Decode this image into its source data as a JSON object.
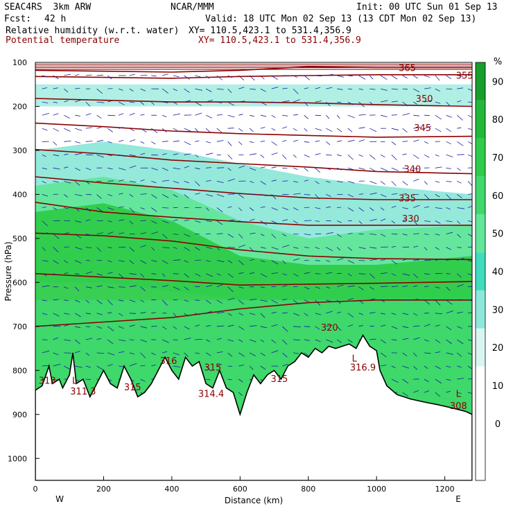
{
  "header": {
    "model": "SEAC4RS  3km ARW",
    "org": "NCAR/MMM",
    "init": "Init: 00 UTC Sun 01 Sep 13",
    "fcst_label": "Fcst:",
    "fcst_value": "42 h",
    "valid": "Valid: 18 UTC Mon 02 Sep 13 (13 CDT Mon 02 Sep 13)",
    "field1": "Relative humidity (w.r.t. water)",
    "xy1": "XY= 110.5,423.1 to 531.4,356.9",
    "field2": "Potential temperature",
    "xy2": "XY= 110.5,423.1 to 531.4,356.9"
  },
  "colors": {
    "contour": "#8b0000",
    "vector": "#1a1aa0",
    "ground": "#ffffff",
    "rh_levels": [
      "#ffffff",
      "#ffffff",
      "#ffffff",
      "#d8f6ef",
      "#8ee8d9",
      "#3fdcc0",
      "#62e69a",
      "#3ed86b",
      "#2ecc4a",
      "#22b83a",
      "#189e2c"
    ]
  },
  "chart_data": {
    "type": "heatmap",
    "title": "Relative humidity (w.r.t. water)",
    "xlabel": "Distance (km)",
    "ylabel": "Pressure (hPa)",
    "xlim": [
      0,
      1280
    ],
    "ylim": [
      1050,
      100
    ],
    "x_ticks": [
      0,
      200,
      400,
      600,
      800,
      1000,
      1200
    ],
    "y_ticks": [
      100,
      200,
      300,
      400,
      500,
      600,
      700,
      800,
      900,
      1000
    ],
    "x_end_labels": {
      "left": "W",
      "right": "E"
    },
    "colorbar": {
      "unit": "%",
      "levels": [
        0,
        10,
        20,
        30,
        40,
        50,
        60,
        70,
        80,
        90
      ]
    },
    "theta_contours": [
      {
        "label": "365",
        "levels_x": [
          0,
          200,
          400,
          600,
          800,
          1000,
          1280
        ],
        "p": [
          118,
          120,
          122,
          118,
          110,
          112,
          112
        ]
      },
      {
        "label": "355",
        "levels_x": [
          0,
          200,
          400,
          600,
          800,
          1000,
          1280
        ],
        "p": [
          132,
          134,
          136,
          132,
          130,
          128,
          128
        ]
      },
      {
        "label": "350",
        "levels_x": [
          0,
          200,
          400,
          600,
          800,
          1000,
          1280
        ],
        "p": [
          182,
          186,
          190,
          190,
          192,
          196,
          200
        ]
      },
      {
        "label": "345",
        "levels_x": [
          0,
          200,
          400,
          600,
          800,
          1000,
          1280
        ],
        "p": [
          238,
          246,
          256,
          262,
          266,
          270,
          268
        ]
      },
      {
        "label": "340",
        "levels_x": [
          0,
          200,
          400,
          600,
          800,
          1000,
          1280
        ],
        "p": [
          298,
          308,
          322,
          330,
          338,
          348,
          353
        ]
      },
      {
        "label": "335",
        "levels_x": [
          0,
          200,
          400,
          600,
          800,
          1000,
          1280
        ],
        "p": [
          360,
          374,
          386,
          398,
          408,
          412,
          412
        ]
      },
      {
        "label": "330",
        "levels_x": [
          0,
          200,
          400,
          600,
          800,
          1000,
          1280
        ],
        "p": [
          418,
          440,
          452,
          462,
          470,
          470,
          470
        ]
      },
      {
        "label": "",
        "levels_x": [
          0,
          200,
          400,
          600,
          800,
          1000,
          1280
        ],
        "p": [
          488,
          494,
          506,
          526,
          540,
          546,
          548
        ]
      },
      {
        "label": "",
        "levels_x": [
          0,
          200,
          400,
          600,
          800,
          1000,
          1280
        ],
        "p": [
          580,
          588,
          596,
          606,
          604,
          602,
          598
        ]
      },
      {
        "label": "",
        "levels_x": [
          0,
          200,
          400,
          600,
          800,
          1000,
          1280
        ],
        "p": [
          700,
          690,
          680,
          660,
          646,
          640,
          640
        ]
      }
    ],
    "contour_labels": [
      {
        "text": "365",
        "x": 1090,
        "p": 120
      },
      {
        "text": "355",
        "x": 1258,
        "p": 137
      },
      {
        "text": "350",
        "x": 1140,
        "p": 190
      },
      {
        "text": "345",
        "x": 1135,
        "p": 256
      },
      {
        "text": "340",
        "x": 1105,
        "p": 350
      },
      {
        "text": "335",
        "x": 1090,
        "p": 416
      },
      {
        "text": "330",
        "x": 1100,
        "p": 462
      },
      {
        "text": "320",
        "x": 862,
        "p": 710
      },
      {
        "text": "316.9",
        "x": 960,
        "p": 800
      },
      {
        "text": "315",
        "x": 520,
        "p": 800
      },
      {
        "text": "316",
        "x": 390,
        "p": 785
      },
      {
        "text": "314.4",
        "x": 515,
        "p": 860
      },
      {
        "text": "315",
        "x": 715,
        "p": 826
      },
      {
        "text": "315",
        "x": 285,
        "p": 845
      },
      {
        "text": "311.3",
        "x": 140,
        "p": 855
      },
      {
        "text": "313",
        "x": 35,
        "p": 830
      },
      {
        "text": "308",
        "x": 1240,
        "p": 888
      }
    ],
    "extra_markers": [
      {
        "text": "L",
        "x": 115,
        "p": 830
      },
      {
        "text": "L",
        "x": 935,
        "p": 780
      },
      {
        "text": "L",
        "x": 1240,
        "p": 860
      }
    ],
    "terrain": [
      [
        0,
        845
      ],
      [
        20,
        835
      ],
      [
        40,
        790
      ],
      [
        50,
        830
      ],
      [
        70,
        820
      ],
      [
        80,
        840
      ],
      [
        100,
        810
      ],
      [
        110,
        760
      ],
      [
        120,
        830
      ],
      [
        140,
        820
      ],
      [
        160,
        860
      ],
      [
        180,
        830
      ],
      [
        200,
        800
      ],
      [
        220,
        830
      ],
      [
        240,
        840
      ],
      [
        260,
        790
      ],
      [
        280,
        820
      ],
      [
        300,
        860
      ],
      [
        320,
        850
      ],
      [
        340,
        830
      ],
      [
        360,
        800
      ],
      [
        380,
        770
      ],
      [
        400,
        800
      ],
      [
        420,
        820
      ],
      [
        440,
        770
      ],
      [
        460,
        790
      ],
      [
        480,
        780
      ],
      [
        500,
        830
      ],
      [
        520,
        840
      ],
      [
        540,
        800
      ],
      [
        560,
        840
      ],
      [
        580,
        850
      ],
      [
        600,
        900
      ],
      [
        620,
        850
      ],
      [
        640,
        810
      ],
      [
        660,
        830
      ],
      [
        680,
        810
      ],
      [
        700,
        800
      ],
      [
        720,
        820
      ],
      [
        740,
        790
      ],
      [
        760,
        780
      ],
      [
        780,
        760
      ],
      [
        800,
        770
      ],
      [
        820,
        750
      ],
      [
        840,
        760
      ],
      [
        860,
        745
      ],
      [
        880,
        750
      ],
      [
        900,
        745
      ],
      [
        920,
        740
      ],
      [
        940,
        750
      ],
      [
        960,
        720
      ],
      [
        980,
        745
      ],
      [
        1000,
        755
      ],
      [
        1010,
        800
      ],
      [
        1030,
        835
      ],
      [
        1060,
        855
      ],
      [
        1100,
        865
      ],
      [
        1140,
        872
      ],
      [
        1180,
        878
      ],
      [
        1220,
        885
      ],
      [
        1260,
        893
      ],
      [
        1280,
        900
      ]
    ],
    "rh_bands": [
      {
        "level": 4,
        "p_top": [
          300,
          280,
          300,
          330,
          360,
          380,
          400
        ],
        "p_bot": [
          520,
          520,
          540,
          560,
          580,
          600,
          600
        ]
      },
      {
        "level": 6,
        "p_top": [
          380,
          360,
          390,
          460,
          500,
          480,
          470
        ],
        "p_bot": [
          600,
          600,
          620,
          640,
          650,
          660,
          640
        ]
      },
      {
        "level": 8,
        "p_top": [
          440,
          420,
          460,
          540,
          560,
          560,
          540
        ],
        "p_bot": [
          680,
          660,
          700,
          720,
          700,
          700,
          700
        ]
      }
    ]
  }
}
